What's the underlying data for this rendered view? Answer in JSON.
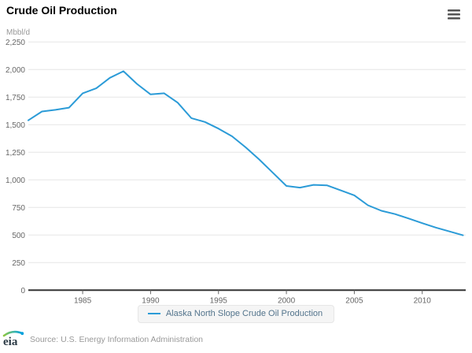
{
  "header": {
    "title": "Crude Oil Production"
  },
  "yaxis_title": "Mbbl/d",
  "chart_data": {
    "type": "line",
    "title": "Crude Oil Production",
    "ylabel": "Mbbl/d",
    "xlabel": "",
    "ylim": [
      0,
      2250
    ],
    "y_tick_step": 250,
    "x_ticks": [
      1985,
      1990,
      1995,
      2000,
      2005,
      2010
    ],
    "xlim": [
      1981,
      2013
    ],
    "grid": "horizontal-only",
    "legend_position": "bottom-center",
    "x": [
      1981,
      1982,
      1983,
      1984,
      1985,
      1986,
      1987,
      1988,
      1989,
      1990,
      1991,
      1992,
      1993,
      1994,
      1995,
      1996,
      1997,
      1998,
      1999,
      2000,
      2001,
      2002,
      2003,
      2004,
      2005,
      2006,
      2007,
      2008,
      2009,
      2010,
      2011,
      2012,
      2013
    ],
    "series": [
      {
        "name": "Alaska North Slope Crude Oil Production",
        "color": "#2b9bd7",
        "values": [
          1540,
          1620,
          1635,
          1655,
          1785,
          1830,
          1925,
          1985,
          1870,
          1775,
          1785,
          1700,
          1560,
          1525,
          1465,
          1395,
          1295,
          1185,
          1065,
          945,
          930,
          955,
          950,
          905,
          860,
          770,
          720,
          690,
          650,
          608,
          568,
          533,
          498
        ]
      }
    ]
  },
  "footer": {
    "source": "Source: U.S. Energy Information Administration",
    "logo_text": "eia"
  },
  "colors": {
    "line": "#2b9bd7",
    "grid": "#e6e6e6",
    "axis": "#333333",
    "tick_label": "#666666",
    "legend_text": "#53748c",
    "source_text": "#999999",
    "logo_green": "#8dc63f",
    "logo_blue": "#00a0dd",
    "logo_text_color": "#2b3a45"
  }
}
